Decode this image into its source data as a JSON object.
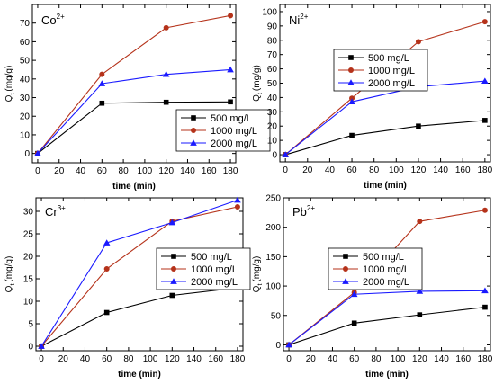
{
  "chart_data": [
    {
      "type": "line",
      "ion": {
        "base": "Co",
        "charge": "2+"
      },
      "xlabel": "time (min)",
      "ylabel": {
        "base": "Q",
        "sub": "t",
        "unit": "(mg/g)"
      },
      "x": [
        0,
        60,
        120,
        180
      ],
      "xlim": [
        -5,
        185
      ],
      "ylim": [
        -5,
        80
      ],
      "xticks": [
        0,
        20,
        40,
        60,
        80,
        100,
        120,
        140,
        160,
        180
      ],
      "yticks": [
        0,
        10,
        20,
        30,
        40,
        50,
        60,
        70
      ],
      "legend_position": "center-right",
      "series": [
        {
          "name": "500 mg/L",
          "color": "#000000",
          "marker": "square",
          "values": [
            0,
            27,
            27.5,
            27.7
          ]
        },
        {
          "name": "1000 mg/L",
          "color": "#b5321a",
          "marker": "circle",
          "values": [
            0,
            42.5,
            67.5,
            74
          ]
        },
        {
          "name": "2000 mg/L",
          "color": "#1a1aff",
          "marker": "triangle",
          "values": [
            0,
            37.5,
            42.5,
            45
          ]
        }
      ]
    },
    {
      "type": "line",
      "ion": {
        "base": "Ni",
        "charge": "2+"
      },
      "xlabel": "time (min)",
      "ylabel": {
        "base": "Q",
        "sub": "t",
        "unit": "(mg/g)"
      },
      "x": [
        0,
        60,
        120,
        180
      ],
      "xlim": [
        -5,
        185
      ],
      "ylim": [
        -5,
        105
      ],
      "xticks": [
        0,
        20,
        40,
        60,
        80,
        100,
        120,
        140,
        160,
        180
      ],
      "yticks": [
        0,
        10,
        20,
        30,
        40,
        50,
        60,
        70,
        80,
        90,
        100
      ],
      "legend_position": "top-left",
      "series": [
        {
          "name": "500 mg/L",
          "color": "#000000",
          "marker": "square",
          "values": [
            0,
            13.5,
            20,
            24
          ]
        },
        {
          "name": "1000 mg/L",
          "color": "#b5321a",
          "marker": "circle",
          "values": [
            0,
            39.5,
            79,
            93
          ]
        },
        {
          "name": "2000 mg/L",
          "color": "#1a1aff",
          "marker": "triangle",
          "values": [
            0,
            37,
            47.5,
            51.5
          ]
        }
      ]
    },
    {
      "type": "line",
      "ion": {
        "base": "Cr",
        "charge": "3+"
      },
      "xlabel": "time (min)",
      "ylabel": {
        "base": "Q",
        "sub": "t",
        "unit": "(mg/g)"
      },
      "x": [
        0,
        60,
        120,
        180
      ],
      "xlim": [
        -5,
        185
      ],
      "ylim": [
        -1,
        33
      ],
      "xticks": [
        0,
        20,
        40,
        60,
        80,
        100,
        120,
        140,
        160,
        180
      ],
      "yticks": [
        0,
        5,
        10,
        15,
        20,
        25,
        30
      ],
      "legend_position": "center-right",
      "series": [
        {
          "name": "500 mg/L",
          "color": "#000000",
          "marker": "square",
          "values": [
            0,
            7.5,
            11.3,
            13
          ]
        },
        {
          "name": "1000 mg/L",
          "color": "#b5321a",
          "marker": "circle",
          "values": [
            0,
            17.2,
            27.8,
            31
          ]
        },
        {
          "name": "2000 mg/L",
          "color": "#1a1aff",
          "marker": "triangle",
          "values": [
            0,
            23,
            27.5,
            32.5
          ]
        }
      ]
    },
    {
      "type": "line",
      "ion": {
        "base": "Pb",
        "charge": "2+"
      },
      "xlabel": "time (min)",
      "ylabel": {
        "base": "Q",
        "sub": "t",
        "unit": "(mg/g)"
      },
      "x": [
        0,
        60,
        120,
        180
      ],
      "xlim": [
        -5,
        185
      ],
      "ylim": [
        -10,
        250
      ],
      "xticks": [
        0,
        20,
        40,
        60,
        80,
        100,
        120,
        140,
        160,
        180
      ],
      "yticks": [
        0,
        50,
        100,
        150,
        200,
        250
      ],
      "legend_position": "top-left",
      "series": [
        {
          "name": "500 mg/L",
          "color": "#000000",
          "marker": "square",
          "values": [
            0,
            37,
            51,
            64
          ]
        },
        {
          "name": "1000 mg/L",
          "color": "#b5321a",
          "marker": "circle",
          "values": [
            0,
            89,
            210,
            229
          ]
        },
        {
          "name": "2000 mg/L",
          "color": "#1a1aff",
          "marker": "triangle",
          "values": [
            0,
            86,
            91,
            92
          ]
        }
      ]
    }
  ]
}
